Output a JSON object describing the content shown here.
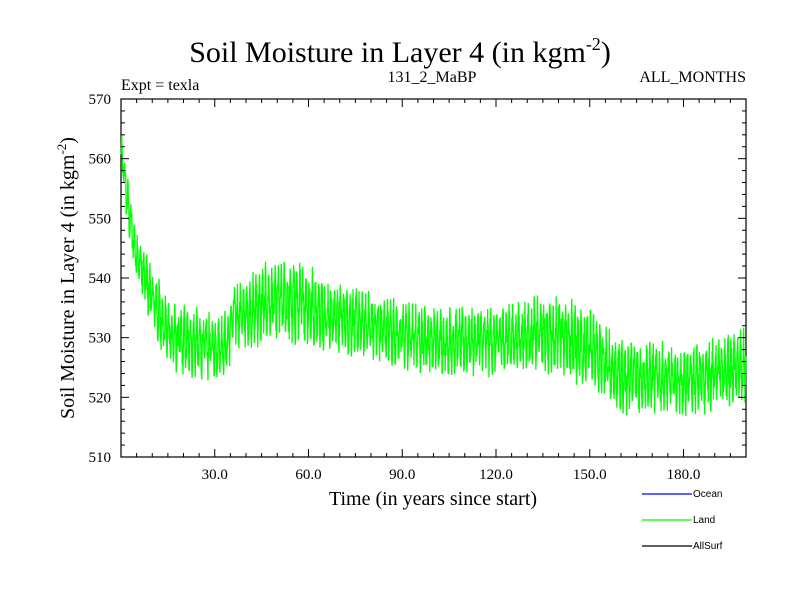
{
  "chart_data": {
    "type": "line",
    "title_main": "Soil Moisture in Layer 4 (in kgm",
    "title_sup": "-2",
    "title_close": ")",
    "subtitle_left": "Expt = texla",
    "subtitle_center": "131_2_MaBP",
    "subtitle_right": "ALL_MONTHS",
    "xlabel": "Time (in years since start)",
    "ylabel_main": "Soil Moisture in Layer 4 (in kgm",
    "ylabel_sup": "-2",
    "ylabel_close": ")",
    "xlim": [
      0,
      200
    ],
    "ylim": [
      510,
      570
    ],
    "xticks": [
      30,
      60,
      90,
      120,
      150,
      180
    ],
    "xtick_labels": [
      "30.0",
      "60.0",
      "90.0",
      "120.0",
      "150.0",
      "180.0"
    ],
    "yticks": [
      510,
      520,
      530,
      540,
      550,
      560,
      570
    ],
    "ytick_labels": [
      "510",
      "520",
      "530",
      "540",
      "550",
      "560",
      "570"
    ],
    "legend": [
      {
        "name": "Ocean",
        "color": "#0000ff"
      },
      {
        "name": "Land",
        "color": "#00ff00"
      },
      {
        "name": "AllSurf",
        "color": "#000000"
      }
    ],
    "series": [
      {
        "name": "Land",
        "color": "#00ff00",
        "x": [
          0,
          1,
          2,
          4,
          6,
          8,
          10,
          12,
          15,
          18,
          22,
          26,
          30,
          34,
          36,
          40,
          45,
          50,
          55,
          60,
          65,
          70,
          75,
          80,
          90,
          100,
          110,
          120,
          130,
          140,
          145,
          150,
          155,
          160,
          170,
          180,
          190,
          200
        ],
        "low": [
          556,
          553,
          548,
          541,
          537,
          534,
          530,
          527,
          525,
          523,
          523,
          522,
          522,
          523,
          528,
          528,
          528,
          529,
          528,
          528,
          527,
          527,
          526,
          526,
          524,
          523,
          523,
          523,
          524,
          523,
          522,
          520,
          518,
          516,
          517,
          516,
          517,
          518
        ],
        "high": [
          565,
          562,
          558,
          551,
          548,
          545,
          543,
          541,
          537,
          536,
          536,
          535,
          535,
          535,
          540,
          540,
          543,
          543,
          544,
          543,
          541,
          540,
          539,
          538,
          537,
          536,
          536,
          536,
          537,
          538,
          537,
          536,
          533,
          531,
          530,
          529,
          531,
          532
        ]
      },
      {
        "name": "Ocean",
        "color": "#0000ff",
        "values": []
      },
      {
        "name": "AllSurf",
        "color": "#000000",
        "values": []
      }
    ]
  }
}
